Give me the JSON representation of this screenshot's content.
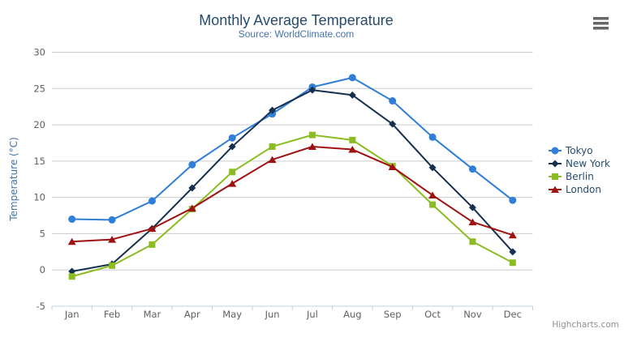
{
  "menu": {
    "icon": "hamburger-menu-icon",
    "color": "#666666"
  },
  "credits": {
    "label": "Highcharts.com"
  },
  "colors": {
    "title": "#274b6d",
    "subtitle": "#4572a7",
    "axis_label": "#606060",
    "grid_line": "#cccccc",
    "axis_line": "#c0d0e0",
    "legend_text": "#274b6d",
    "credits_text": "#909090",
    "background": "#ffffff"
  },
  "chart_data": {
    "type": "line",
    "title": "Monthly Average Temperature",
    "subtitle": "Source: WorldClimate.com",
    "xlabel": "",
    "ylabel": "Temperature (°C)",
    "ylim": [
      -5,
      30
    ],
    "ytick_step": 5,
    "grid": true,
    "legend_position": "right",
    "categories": [
      "Jan",
      "Feb",
      "Mar",
      "Apr",
      "May",
      "Jun",
      "Jul",
      "Aug",
      "Sep",
      "Oct",
      "Nov",
      "Dec"
    ],
    "series": [
      {
        "name": "Tokyo",
        "color": "#2f7ed8",
        "marker": "circle",
        "values": [
          7.0,
          6.9,
          9.5,
          14.5,
          18.2,
          21.5,
          25.2,
          26.5,
          23.3,
          18.3,
          13.9,
          9.6
        ]
      },
      {
        "name": "New York",
        "color": "#16304f",
        "marker": "diamond",
        "values": [
          -0.2,
          0.8,
          5.7,
          11.3,
          17.0,
          22.0,
          24.8,
          24.1,
          20.1,
          14.1,
          8.6,
          2.5
        ]
      },
      {
        "name": "Berlin",
        "color": "#8bbc21",
        "marker": "square",
        "values": [
          -0.9,
          0.6,
          3.5,
          8.4,
          13.5,
          17.0,
          18.6,
          17.9,
          14.3,
          9.0,
          3.9,
          1.0
        ]
      },
      {
        "name": "London",
        "color": "#9e1111",
        "marker": "triangle",
        "values": [
          3.9,
          4.2,
          5.7,
          8.5,
          11.9,
          15.2,
          17.0,
          16.6,
          14.2,
          10.3,
          6.6,
          4.8
        ]
      }
    ]
  }
}
